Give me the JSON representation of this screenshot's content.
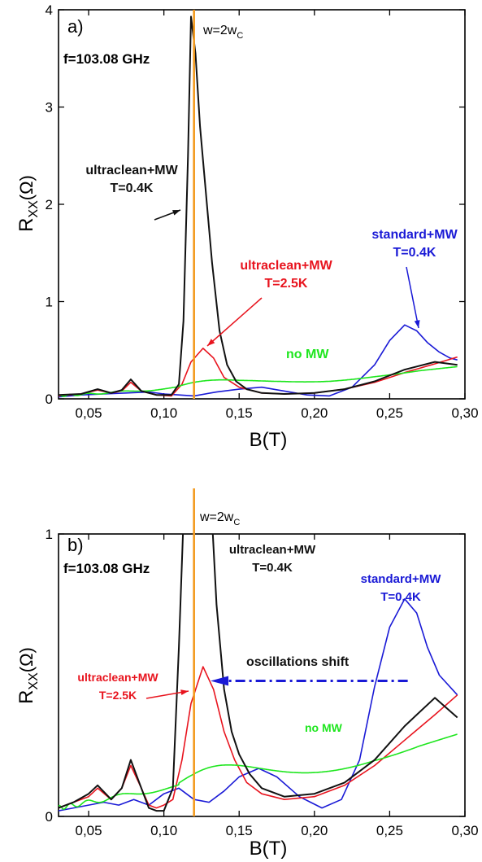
{
  "chart_data": [
    {
      "type": "line",
      "panel_label": "a)",
      "frequency_label": "f=103.08 GHz",
      "marker_label": "w=2w",
      "marker_sub": "C",
      "marker_x": 0.12,
      "xlabel": "B(T)",
      "ylabel_main": "R",
      "ylabel_sub": "XX",
      "ylabel_unit": "(Ω)",
      "xlim": [
        0.03,
        0.3
      ],
      "ylim": [
        0,
        4
      ],
      "x_ticks": [
        "0,05",
        "0,10",
        "0,15",
        "0,20",
        "0,25",
        "0,30"
      ],
      "x_tick_values": [
        0.05,
        0.1,
        0.15,
        0.2,
        0.25,
        0.3
      ],
      "y_ticks": [
        "0",
        "1",
        "2",
        "3",
        "4"
      ],
      "y_tick_values": [
        0,
        1,
        2,
        3,
        4
      ],
      "series": [
        {
          "key": "standard",
          "color": "#1a1ad6",
          "values": [
            [
              0.03,
              0.02
            ],
            [
              0.045,
              0.04
            ],
            [
              0.06,
              0.05
            ],
            [
              0.075,
              0.06
            ],
            [
              0.09,
              0.07
            ],
            [
              0.1,
              0.05
            ],
            [
              0.11,
              0.04
            ],
            [
              0.12,
              0.03
            ],
            [
              0.135,
              0.07
            ],
            [
              0.15,
              0.1
            ],
            [
              0.165,
              0.12
            ],
            [
              0.18,
              0.08
            ],
            [
              0.195,
              0.04
            ],
            [
              0.21,
              0.03
            ],
            [
              0.225,
              0.12
            ],
            [
              0.24,
              0.35
            ],
            [
              0.25,
              0.6
            ],
            [
              0.26,
              0.76
            ],
            [
              0.268,
              0.7
            ],
            [
              0.275,
              0.58
            ],
            [
              0.283,
              0.48
            ],
            [
              0.29,
              0.42
            ],
            [
              0.295,
              0.4
            ]
          ]
        },
        {
          "key": "ultraclean_2_5K",
          "color": "#e8141e",
          "values": [
            [
              0.03,
              0.03
            ],
            [
              0.045,
              0.05
            ],
            [
              0.056,
              0.09
            ],
            [
              0.065,
              0.06
            ],
            [
              0.072,
              0.08
            ],
            [
              0.078,
              0.17
            ],
            [
              0.085,
              0.08
            ],
            [
              0.095,
              0.04
            ],
            [
              0.105,
              0.03
            ],
            [
              0.112,
              0.15
            ],
            [
              0.118,
              0.38
            ],
            [
              0.126,
              0.52
            ],
            [
              0.133,
              0.42
            ],
            [
              0.14,
              0.22
            ],
            [
              0.15,
              0.12
            ],
            [
              0.165,
              0.06
            ],
            [
              0.18,
              0.05
            ],
            [
              0.2,
              0.06
            ],
            [
              0.22,
              0.1
            ],
            [
              0.24,
              0.17
            ],
            [
              0.26,
              0.27
            ],
            [
              0.28,
              0.36
            ],
            [
              0.295,
              0.43
            ]
          ]
        },
        {
          "key": "ultraclean_0_4K",
          "color": "#111111",
          "values": [
            [
              0.03,
              0.04
            ],
            [
              0.045,
              0.05
            ],
            [
              0.056,
              0.1
            ],
            [
              0.065,
              0.06
            ],
            [
              0.072,
              0.09
            ],
            [
              0.078,
              0.2
            ],
            [
              0.085,
              0.08
            ],
            [
              0.095,
              0.04
            ],
            [
              0.105,
              0.04
            ],
            [
              0.11,
              0.15
            ],
            [
              0.113,
              0.8
            ],
            [
              0.116,
              2.5
            ],
            [
              0.118,
              3.93
            ],
            [
              0.121,
              3.55
            ],
            [
              0.124,
              2.8
            ],
            [
              0.128,
              2.1
            ],
            [
              0.132,
              1.4
            ],
            [
              0.137,
              0.7
            ],
            [
              0.142,
              0.35
            ],
            [
              0.148,
              0.18
            ],
            [
              0.155,
              0.1
            ],
            [
              0.165,
              0.06
            ],
            [
              0.18,
              0.05
            ],
            [
              0.2,
              0.06
            ],
            [
              0.22,
              0.1
            ],
            [
              0.24,
              0.18
            ],
            [
              0.26,
              0.3
            ],
            [
              0.28,
              0.38
            ],
            [
              0.295,
              0.35
            ]
          ]
        },
        {
          "key": "noMW",
          "color": "#1ee61e",
          "values": [
            [
              0.03,
              0.03
            ],
            [
              0.06,
              0.06
            ],
            [
              0.09,
              0.09
            ],
            [
              0.12,
              0.14
            ],
            [
              0.15,
              0.17
            ],
            [
              0.18,
              0.22
            ],
            [
              0.21,
              0.26
            ],
            [
              0.24,
              0.31
            ],
            [
              0.27,
              0.35
            ],
            [
              0.295,
              0.36
            ]
          ]
        }
      ],
      "annotations": [
        {
          "line1": "ultraclean+MW",
          "line2": "T=0.4K",
          "color": "#111111"
        },
        {
          "line1": "standard+MW",
          "line2": "T=0.4K",
          "color": "#1a1ad6"
        },
        {
          "line1": "ultraclean+MW",
          "line2": "T=2.5K",
          "color": "#e8141e"
        },
        {
          "line1": "no MW",
          "line2": "",
          "color": "#1ee61e"
        }
      ]
    },
    {
      "type": "line",
      "panel_label": "b)",
      "frequency_label": "f=103.08 GHz",
      "marker_label": "w=2w",
      "marker_sub": "C",
      "marker_x": 0.12,
      "xlabel": "B(T)",
      "ylabel_main": "R",
      "ylabel_sub": "XX",
      "ylabel_unit": "(Ω)",
      "xlim": [
        0.03,
        0.3
      ],
      "ylim": [
        0,
        1
      ],
      "x_ticks": [
        "0,05",
        "0,10",
        "0,15",
        "0,20",
        "0,25",
        "0,30"
      ],
      "x_tick_values": [
        0.05,
        0.1,
        0.15,
        0.2,
        0.25,
        0.3
      ],
      "y_ticks": [
        "0",
        "1"
      ],
      "y_tick_values": [
        0,
        1
      ],
      "series": [
        {
          "key": "standard",
          "color": "#1a1ad6",
          "values": [
            [
              0.03,
              0.02
            ],
            [
              0.04,
              0.03
            ],
            [
              0.05,
              0.04
            ],
            [
              0.06,
              0.05
            ],
            [
              0.07,
              0.04
            ],
            [
              0.08,
              0.06
            ],
            [
              0.09,
              0.04
            ],
            [
              0.1,
              0.08
            ],
            [
              0.11,
              0.1
            ],
            [
              0.12,
              0.06
            ],
            [
              0.13,
              0.05
            ],
            [
              0.14,
              0.09
            ],
            [
              0.15,
              0.14
            ],
            [
              0.163,
              0.17
            ],
            [
              0.175,
              0.14
            ],
            [
              0.19,
              0.07
            ],
            [
              0.205,
              0.03
            ],
            [
              0.218,
              0.06
            ],
            [
              0.23,
              0.2
            ],
            [
              0.24,
              0.46
            ],
            [
              0.25,
              0.67
            ],
            [
              0.26,
              0.77
            ],
            [
              0.268,
              0.72
            ],
            [
              0.275,
              0.6
            ],
            [
              0.283,
              0.5
            ],
            [
              0.295,
              0.43
            ]
          ]
        },
        {
          "key": "ultraclean_2_5K",
          "color": "#e8141e",
          "values": [
            [
              0.03,
              0.03
            ],
            [
              0.04,
              0.05
            ],
            [
              0.05,
              0.07
            ],
            [
              0.056,
              0.1
            ],
            [
              0.065,
              0.06
            ],
            [
              0.072,
              0.1
            ],
            [
              0.078,
              0.18
            ],
            [
              0.085,
              0.1
            ],
            [
              0.09,
              0.04
            ],
            [
              0.095,
              0.03
            ],
            [
              0.1,
              0.04
            ],
            [
              0.106,
              0.06
            ],
            [
              0.112,
              0.2
            ],
            [
              0.118,
              0.4
            ],
            [
              0.126,
              0.53
            ],
            [
              0.133,
              0.45
            ],
            [
              0.14,
              0.3
            ],
            [
              0.147,
              0.2
            ],
            [
              0.155,
              0.12
            ],
            [
              0.165,
              0.08
            ],
            [
              0.18,
              0.06
            ],
            [
              0.2,
              0.07
            ],
            [
              0.22,
              0.11
            ],
            [
              0.24,
              0.18
            ],
            [
              0.26,
              0.27
            ],
            [
              0.28,
              0.36
            ],
            [
              0.295,
              0.43
            ]
          ]
        },
        {
          "key": "ultraclean_0_4K",
          "color": "#111111",
          "values": [
            [
              0.03,
              0.03
            ],
            [
              0.04,
              0.05
            ],
            [
              0.05,
              0.08
            ],
            [
              0.056,
              0.11
            ],
            [
              0.065,
              0.06
            ],
            [
              0.072,
              0.1
            ],
            [
              0.078,
              0.2
            ],
            [
              0.085,
              0.1
            ],
            [
              0.09,
              0.03
            ],
            [
              0.095,
              0.02
            ],
            [
              0.1,
              0.02
            ],
            [
              0.106,
              0.1
            ],
            [
              0.11,
              0.6
            ],
            [
              0.113,
              1.05
            ],
            [
              0.132,
              1.05
            ],
            [
              0.135,
              0.75
            ],
            [
              0.14,
              0.45
            ],
            [
              0.145,
              0.3
            ],
            [
              0.15,
              0.22
            ],
            [
              0.157,
              0.15
            ],
            [
              0.165,
              0.1
            ],
            [
              0.18,
              0.07
            ],
            [
              0.2,
              0.08
            ],
            [
              0.22,
              0.12
            ],
            [
              0.24,
              0.2
            ],
            [
              0.26,
              0.32
            ],
            [
              0.28,
              0.42
            ],
            [
              0.295,
              0.35
            ]
          ]
        },
        {
          "key": "noMW",
          "color": "#1ee61e",
          "values": [
            [
              0.03,
              0.03
            ],
            [
              0.06,
              0.06
            ],
            [
              0.09,
              0.09
            ],
            [
              0.12,
              0.12
            ],
            [
              0.15,
              0.16
            ],
            [
              0.18,
              0.2
            ],
            [
              0.21,
              0.24
            ],
            [
              0.24,
              0.28
            ],
            [
              0.27,
              0.31
            ],
            [
              0.295,
              0.32
            ]
          ]
        }
      ],
      "annotations": [
        {
          "line1": "ultraclean+MW",
          "line2": "T=0.4K",
          "color": "#111111"
        },
        {
          "line1": "standard+MW",
          "line2": "T=0.4K",
          "color": "#1a1ad6"
        },
        {
          "line1": "ultraclean+MW",
          "line2": "T=2.5K",
          "color": "#e8141e"
        },
        {
          "line1": "no MW",
          "line2": "",
          "color": "#1ee61e"
        },
        {
          "line1": "oscillations shift",
          "line2": "",
          "color": "#111111"
        }
      ]
    }
  ]
}
